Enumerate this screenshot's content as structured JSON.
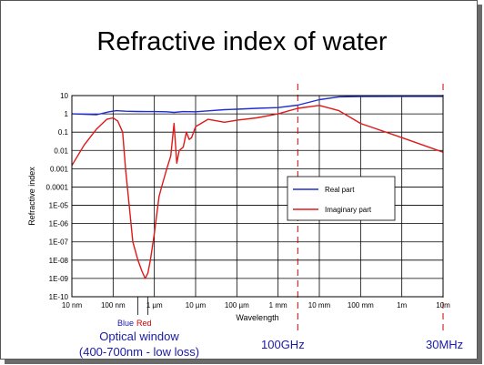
{
  "slide": {
    "title": "Refractive index of water"
  },
  "annotations": {
    "blue_label": "Blue",
    "red_label": "Red",
    "optical_window_line1": "Optical window",
    "optical_window_line2": "(400-700nm - low loss)",
    "freq_100ghz": "100GHz",
    "freq_30mhz": "30MHz"
  },
  "chart_data": {
    "type": "line",
    "title": "",
    "xlabel": "Wavelength",
    "ylabel": "Refractive index",
    "x_scale": "log",
    "y_scale": "log",
    "x_unit": "meters",
    "xlim": [
      1e-08,
      10
    ],
    "ylim": [
      1e-10,
      10
    ],
    "grid": true,
    "legend_position": "right",
    "x_tick_values": [
      1e-08,
      1e-07,
      1e-06,
      1e-05,
      0.0001,
      0.001,
      0.01,
      0.1,
      1,
      10
    ],
    "x_tick_labels": [
      "10 nm",
      "100 nm",
      "1 µm",
      "10 µm",
      "100 µm",
      "1 mm",
      "10 mm",
      "100 mm",
      "1m",
      "10m"
    ],
    "y_tick_values": [
      10,
      1,
      0.1,
      0.01,
      0.001,
      0.0001,
      1e-05,
      1e-06,
      1e-07,
      1e-08,
      1e-09,
      1e-10
    ],
    "y_tick_labels": [
      "10",
      "1",
      "0.1",
      "0.01",
      "0.001",
      "0.0001",
      "1E-05",
      "1E-06",
      "1E-07",
      "1E-08",
      "1E-09",
      "1E-10"
    ],
    "series": [
      {
        "name": "Real part",
        "color": "#1f2fd0",
        "x": [
          1e-08,
          2e-08,
          4e-08,
          8e-08,
          1.2e-07,
          2e-07,
          4e-07,
          7e-07,
          1e-06,
          2e-06,
          3e-06,
          5e-06,
          1e-05,
          2e-05,
          5e-05,
          0.0001,
          0.0003,
          0.001,
          0.003,
          0.01,
          0.03,
          0.1,
          1,
          10
        ],
        "y": [
          1.0,
          0.95,
          0.9,
          1.3,
          1.5,
          1.4,
          1.34,
          1.33,
          1.33,
          1.3,
          1.2,
          1.33,
          1.3,
          1.45,
          1.7,
          1.8,
          2.0,
          2.2,
          3.0,
          6.0,
          8.5,
          8.9,
          9.0,
          9.0
        ]
      },
      {
        "name": "Imaginary part",
        "color": "#e01818",
        "x": [
          1e-08,
          2e-08,
          4e-08,
          7e-08,
          1e-07,
          1.3e-07,
          1.7e-07,
          2e-07,
          3e-07,
          4e-07,
          5e-07,
          6e-07,
          7e-07,
          8e-07,
          1e-06,
          1.3e-06,
          1.5e-06,
          2e-06,
          2.5e-06,
          3e-06,
          3.5e-06,
          4e-06,
          5e-06,
          6e-06,
          7e-06,
          8e-06,
          1e-05,
          2e-05,
          5e-05,
          0.0001,
          0.0003,
          0.001,
          0.003,
          0.01,
          0.03,
          0.1,
          1,
          10
        ],
        "y": [
          0.0015,
          0.02,
          0.15,
          0.5,
          0.6,
          0.4,
          0.1,
          0.001,
          1e-07,
          1e-08,
          2.5e-09,
          1e-09,
          2e-09,
          1e-08,
          3e-07,
          3e-05,
          0.0001,
          0.001,
          0.005,
          0.3,
          0.002,
          0.01,
          0.015,
          0.1,
          0.04,
          0.05,
          0.2,
          0.5,
          0.35,
          0.45,
          0.6,
          1.0,
          2.0,
          2.9,
          1.5,
          0.3,
          0.05,
          0.008
        ]
      }
    ],
    "reference_lines": [
      {
        "x": 0.003,
        "label": "100GHz",
        "style": "dashed",
        "color": "#cc0000"
      },
      {
        "x": 10,
        "label": "30MHz",
        "style": "dashed",
        "color": "#cc0000"
      }
    ]
  }
}
